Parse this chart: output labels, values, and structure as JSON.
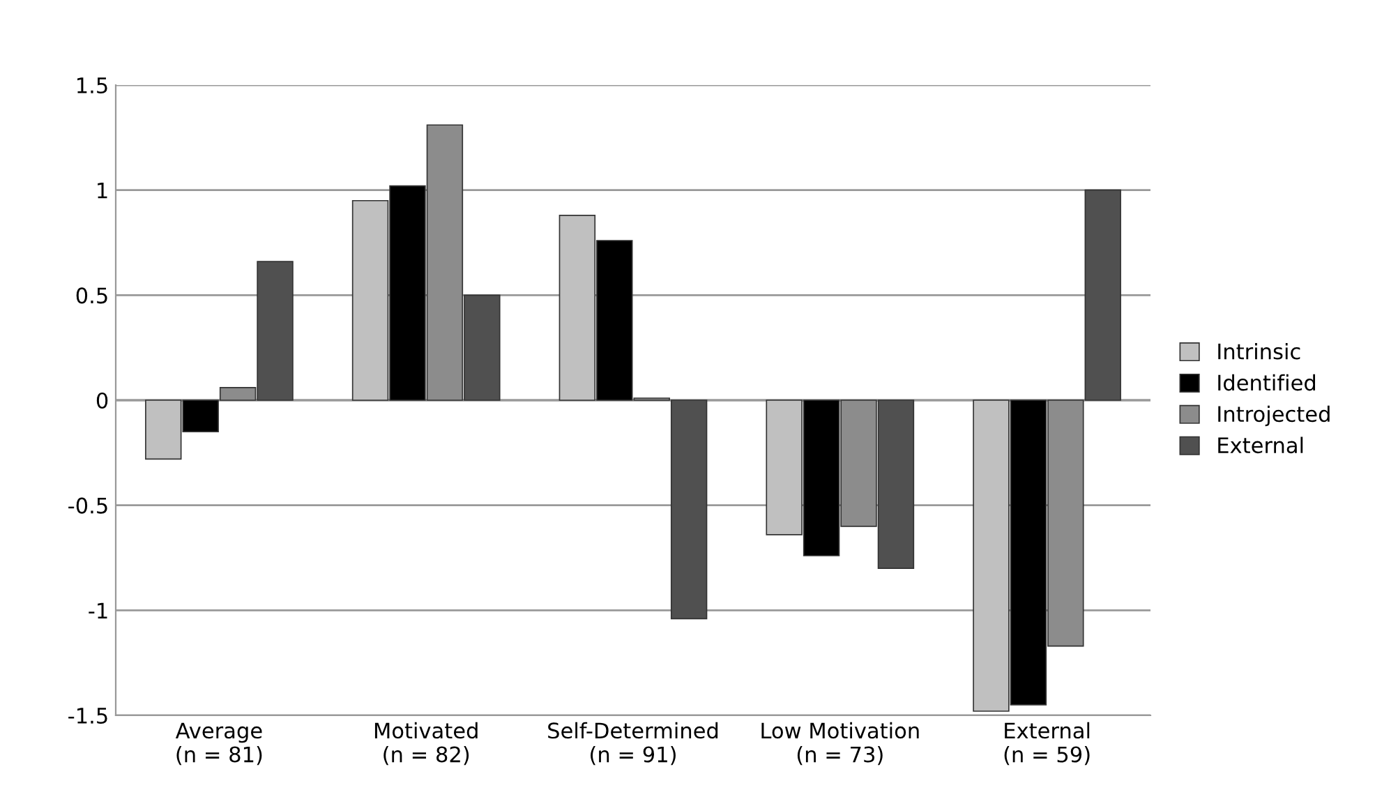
{
  "chart_data": {
    "type": "bar",
    "categories": [
      "Average\n(n = 81)",
      "Motivated\n(n = 82)",
      "Self-Determined\n(n = 91)",
      "Low Motivation\n(n = 73)",
      "External\n(n = 59)"
    ],
    "series": [
      {
        "name": "Intrinsic",
        "color": "#c0c0c0",
        "values": [
          -0.28,
          0.95,
          0.88,
          -0.64,
          -1.48
        ]
      },
      {
        "name": "Identified",
        "color": "#000000",
        "values": [
          -0.15,
          1.02,
          0.76,
          -0.74,
          -1.45
        ]
      },
      {
        "name": "Introjected",
        "color": "#8c8c8c",
        "values": [
          0.06,
          1.31,
          0.01,
          -0.6,
          -1.17
        ]
      },
      {
        "name": "External",
        "color": "#505050",
        "values": [
          0.66,
          0.5,
          -1.04,
          -0.8,
          1.0
        ]
      }
    ],
    "ylim": [
      -1.5,
      1.5
    ],
    "yticks": [
      {
        "value": -1.5,
        "label": "-1.5"
      },
      {
        "value": -1,
        "label": "-1"
      },
      {
        "value": -0.5,
        "label": "-0.5"
      },
      0,
      0.5,
      1,
      1.5
    ],
    "grid": "y",
    "legend": "right"
  }
}
